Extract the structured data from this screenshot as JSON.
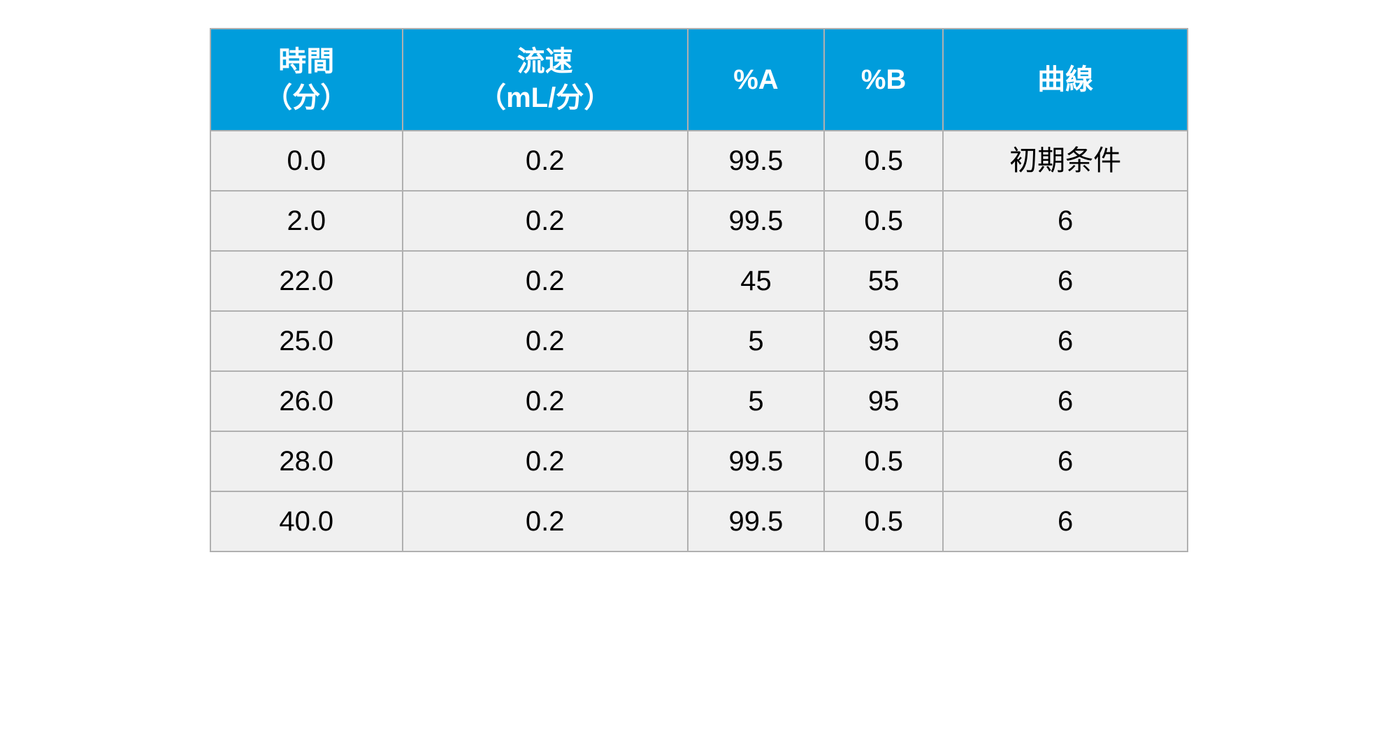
{
  "table": {
    "type": "table",
    "header_bg_color": "#009DDC",
    "header_text_color": "#ffffff",
    "header_fontsize_pt": 32,
    "body_bg_color": "#F0F0F0",
    "body_text_color": "#000000",
    "body_fontsize_pt": 32,
    "border_color": "#b0b0b0",
    "columns": [
      {
        "label_line1": "時間",
        "label_line2": "（分）"
      },
      {
        "label_line1": "流速",
        "label_line2": "（mL/分）"
      },
      {
        "label_line1": "%A",
        "label_line2": ""
      },
      {
        "label_line1": "%B",
        "label_line2": ""
      },
      {
        "label_line1": "曲線",
        "label_line2": ""
      }
    ],
    "rows": [
      [
        "0.0",
        "0.2",
        "99.5",
        "0.5",
        "初期条件"
      ],
      [
        "2.0",
        "0.2",
        "99.5",
        "0.5",
        "6"
      ],
      [
        "22.0",
        "0.2",
        "45",
        "55",
        "6"
      ],
      [
        "25.0",
        "0.2",
        "5",
        "95",
        "6"
      ],
      [
        "26.0",
        "0.2",
        "5",
        "95",
        "6"
      ],
      [
        "28.0",
        "0.2",
        "99.5",
        "0.5",
        "6"
      ],
      [
        "40.0",
        "0.2",
        "99.5",
        "0.5",
        "6"
      ]
    ]
  }
}
